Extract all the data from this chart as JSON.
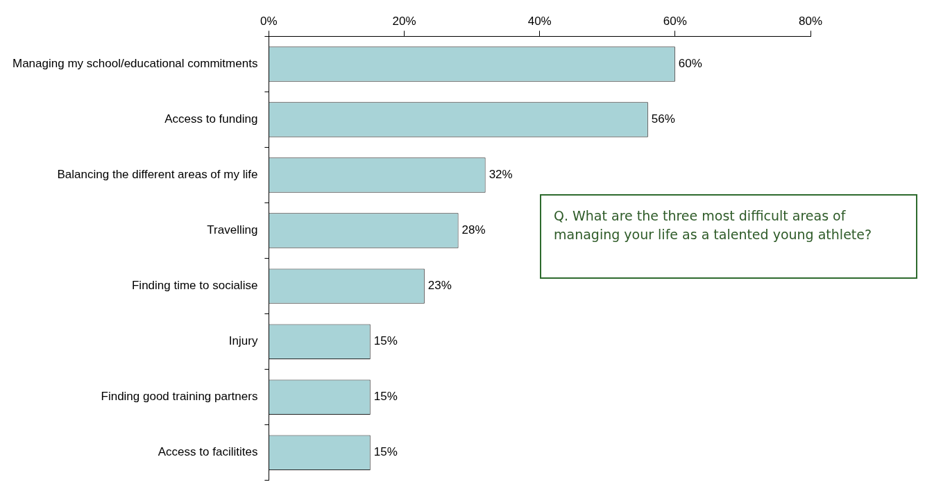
{
  "chart_data": {
    "type": "bar",
    "orientation": "horizontal",
    "categories": [
      "Managing my school/educational commitments",
      "Access to funding",
      "Balancing the different areas of my life",
      "Travelling",
      "Finding time to socialise",
      "Injury",
      "Finding good training partners",
      "Access to facilitites"
    ],
    "values": [
      60,
      56,
      32,
      28,
      23,
      15,
      15,
      15
    ],
    "value_labels": [
      "60%",
      "56%",
      "32%",
      "28%",
      "23%",
      "15%",
      "15%",
      "15%"
    ],
    "color": "#a8d3d7",
    "xlim": [
      0,
      80
    ],
    "xticks": [
      {
        "value": 0,
        "label": "0%"
      },
      {
        "value": 20,
        "label": "20%"
      },
      {
        "value": 40,
        "label": "40%"
      },
      {
        "value": 60,
        "label": "60%"
      },
      {
        "value": 80,
        "label": "80%"
      }
    ],
    "grid": false,
    "legend": false,
    "annotations": [
      "Q. What are the three most difficult areas of managing your life as a talented young athlete?"
    ]
  }
}
